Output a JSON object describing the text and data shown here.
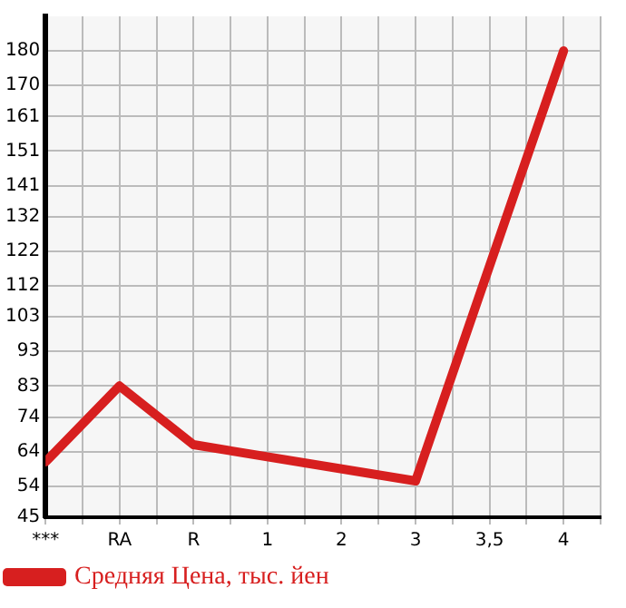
{
  "chart_data": {
    "type": "line",
    "categories": [
      "***",
      "RA",
      "R",
      "1",
      "2",
      "3",
      "3,5",
      "4"
    ],
    "series": [
      {
        "name": "Средняя Цена, тыс. йен",
        "color": "#d71f1f",
        "values": [
          61,
          83,
          66,
          null,
          null,
          55.5,
          null,
          180
        ]
      }
    ],
    "ylim": [
      45,
      190
    ],
    "yticks": [
      45,
      54,
      64,
      74,
      83,
      93,
      103,
      112,
      122,
      132,
      141,
      151,
      161,
      170,
      180
    ],
    "grid": true,
    "legend": "bottom",
    "marker": "none",
    "line_style": "solid"
  }
}
